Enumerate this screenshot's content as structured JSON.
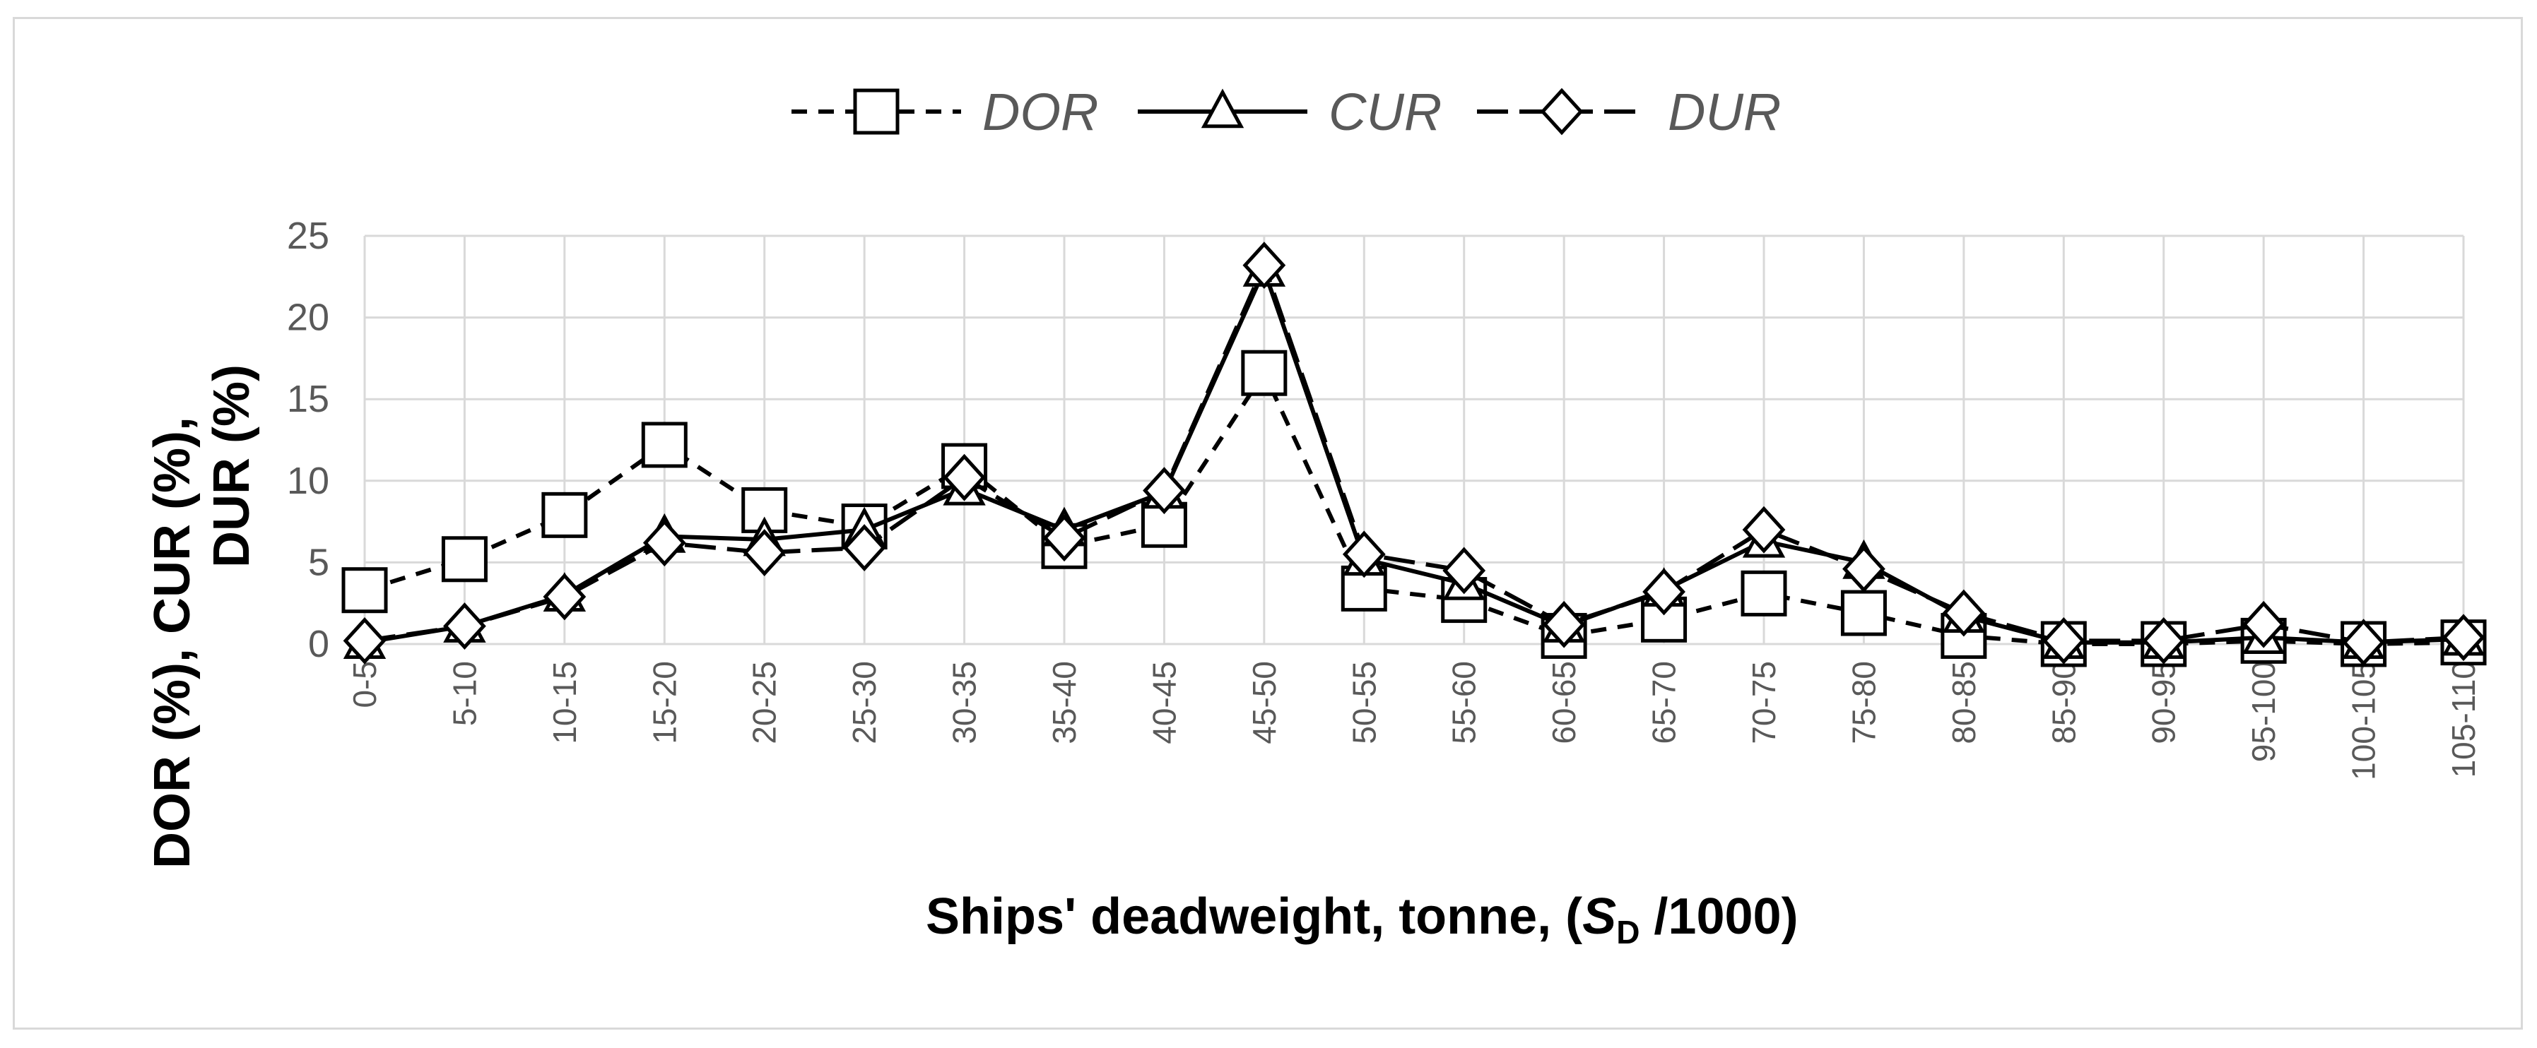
{
  "chart_data": {
    "type": "line",
    "title": "",
    "xlabel_main": "Ships' deadweight, tonne, (",
    "xlabel_sym": "S",
    "xlabel_sub": "D",
    "xlabel_tail": " /1000)",
    "ylabel_line1": "DOR (%), CUR (%),",
    "ylabel_line2": "DUR (%)",
    "ylim": [
      0,
      25
    ],
    "yticks": [
      "0",
      "5",
      "10",
      "15",
      "20",
      "25"
    ],
    "grid": true,
    "legend_position": "top-center",
    "categories": [
      "0-5",
      "5-10",
      "10-15",
      "15-20",
      "20-25",
      "25-30",
      "30-35",
      "35-40",
      "40-45",
      "45-50",
      "50-55",
      "55-60",
      "60-65",
      "65-70",
      "70-75",
      "75-80",
      "80-85",
      "85-90",
      "90-95",
      "95-100",
      "100-105",
      "105-110"
    ],
    "series": [
      {
        "name": "DOR",
        "marker": "square",
        "dash": "dashed",
        "color": "#000000",
        "values": [
          3.3,
          5.2,
          7.9,
          12.2,
          8.2,
          7.2,
          10.9,
          6.0,
          7.3,
          16.6,
          3.4,
          2.7,
          0.5,
          1.5,
          3.1,
          1.9,
          0.5,
          0.0,
          0.0,
          0.2,
          0.0,
          0.1
        ]
      },
      {
        "name": "CUR",
        "marker": "triangle",
        "dash": "solid",
        "color": "#000000",
        "values": [
          0.1,
          1.1,
          3.0,
          6.6,
          6.4,
          7.0,
          9.5,
          7.0,
          9.3,
          22.9,
          5.2,
          3.7,
          1.1,
          3.3,
          6.3,
          5.0,
          1.7,
          0.1,
          0.1,
          0.4,
          0.1,
          0.3
        ]
      },
      {
        "name": "DUR",
        "marker": "diamond",
        "dash": "longdash",
        "color": "#000000",
        "values": [
          0.2,
          1.1,
          2.9,
          6.2,
          5.6,
          5.9,
          10.2,
          6.5,
          9.4,
          23.2,
          5.5,
          4.5,
          1.2,
          3.2,
          7.0,
          4.6,
          1.9,
          0.2,
          0.2,
          1.2,
          0.1,
          0.4
        ]
      }
    ]
  }
}
